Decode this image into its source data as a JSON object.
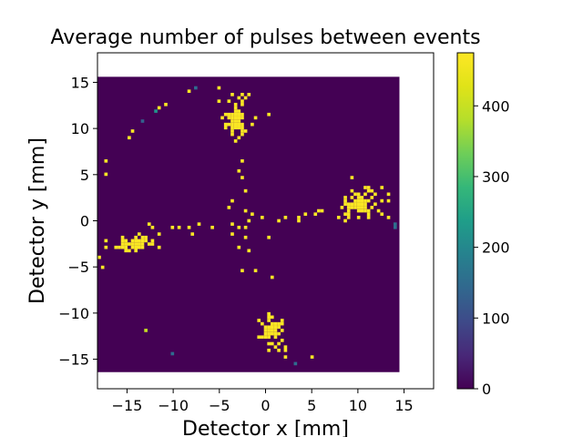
{
  "chart_data": {
    "type": "heatmap",
    "title": "Average number of pulses between events",
    "xlabel": "Detector x [mm]",
    "ylabel": "Detector y [mm]",
    "xlim": [
      -18.2,
      18.2
    ],
    "ylim": [
      -18.2,
      18.2
    ],
    "xticks": [
      -15,
      -10,
      -5,
      0,
      5,
      10,
      15
    ],
    "yticks": [
      -15,
      -10,
      -5,
      0,
      5,
      10,
      15
    ],
    "data_extent": {
      "x": [
        -18.2,
        14.5
      ],
      "y": [
        -16.4,
        15.6
      ]
    },
    "grid": false,
    "colormap": "viridis",
    "colorbar": {
      "min": 0,
      "max": 475,
      "ticks": [
        0,
        100,
        200,
        300,
        400
      ]
    },
    "background_value": 0,
    "clusters": [
      {
        "label": "top",
        "x": -3.2,
        "y": 11.0,
        "sx": 0.9,
        "sy": 1.2,
        "n": 55,
        "value": 470
      },
      {
        "label": "right",
        "x": 10.2,
        "y": 1.8,
        "sx": 1.3,
        "sy": 0.9,
        "n": 60,
        "value": 470
      },
      {
        "label": "left",
        "x": -14.2,
        "y": -2.4,
        "sx": 1.4,
        "sy": 0.5,
        "n": 45,
        "value": 470
      },
      {
        "label": "bottom",
        "x": 0.8,
        "y": -11.8,
        "sx": 0.7,
        "sy": 0.9,
        "n": 40,
        "value": 470
      }
    ],
    "points": [
      {
        "x": -3.5,
        "y": 13.5,
        "value": 470
      },
      {
        "x": -3.0,
        "y": 13.2,
        "value": 470
      },
      {
        "x": -3.2,
        "y": 12.6,
        "value": 470
      },
      {
        "x": -4.3,
        "y": 10.0,
        "value": 470
      },
      {
        "x": -2.0,
        "y": 9.8,
        "value": 470
      },
      {
        "x": 9.3,
        "y": 3.3,
        "value": 470
      },
      {
        "x": 8.8,
        "y": 2.4,
        "value": 470
      },
      {
        "x": 8.6,
        "y": 0.0,
        "value": 470
      },
      {
        "x": 8.2,
        "y": 1.5,
        "value": 470
      },
      {
        "x": 12.5,
        "y": 2.2,
        "value": 470
      },
      {
        "x": 13.2,
        "y": 2.0,
        "value": 470
      },
      {
        "x": 10.0,
        "y": 0.3,
        "value": 470
      },
      {
        "x": 11.0,
        "y": 0.8,
        "value": 470
      },
      {
        "x": 5.3,
        "y": 0.8,
        "value": 470
      },
      {
        "x": 5.6,
        "y": 0.9,
        "value": 470
      },
      {
        "x": 4.2,
        "y": 0.6,
        "value": 470
      },
      {
        "x": 3.6,
        "y": 0.4,
        "value": 470
      },
      {
        "x": 3.5,
        "y": 0.0,
        "value": 470
      },
      {
        "x": 2.3,
        "y": 0.3,
        "value": 470
      },
      {
        "x": 1.5,
        "y": 0.0,
        "value": 470
      },
      {
        "x": 6.0,
        "y": 1.2,
        "value": 470
      },
      {
        "x": -3.0,
        "y": 5.5,
        "value": 470
      },
      {
        "x": -2.5,
        "y": 4.8,
        "value": 470
      },
      {
        "x": -2.6,
        "y": 6.6,
        "value": 470
      },
      {
        "x": -2.2,
        "y": 3.1,
        "value": 470
      },
      {
        "x": -3.5,
        "y": 2.2,
        "value": 470
      },
      {
        "x": -4.1,
        "y": 1.4,
        "value": 470
      },
      {
        "x": -2.0,
        "y": 1.2,
        "value": 470
      },
      {
        "x": -1.5,
        "y": 0.7,
        "value": 470
      },
      {
        "x": -1.9,
        "y": 0.1,
        "value": 470
      },
      {
        "x": -2.2,
        "y": -0.6,
        "value": 470
      },
      {
        "x": -3.0,
        "y": -0.7,
        "value": 470
      },
      {
        "x": -3.6,
        "y": -0.5,
        "value": 470
      },
      {
        "x": -3.5,
        "y": -1.5,
        "value": 470
      },
      {
        "x": -2.1,
        "y": -1.8,
        "value": 470
      },
      {
        "x": -2.8,
        "y": -2.7,
        "value": 470
      },
      {
        "x": -1.8,
        "y": -3.2,
        "value": 470
      },
      {
        "x": -2.5,
        "y": -5.5,
        "value": 470
      },
      {
        "x": -1.0,
        "y": -5.4,
        "value": 470
      },
      {
        "x": 0.6,
        "y": -6.2,
        "value": 470
      },
      {
        "x": 0.2,
        "y": -1.8,
        "value": 470
      },
      {
        "x": -0.4,
        "y": 0.4,
        "value": 470
      },
      {
        "x": -5.6,
        "y": -0.6,
        "value": 470
      },
      {
        "x": -8.4,
        "y": -0.8,
        "value": 470
      },
      {
        "x": -8.0,
        "y": -1.6,
        "value": 470
      },
      {
        "x": -9.2,
        "y": -0.6,
        "value": 470
      },
      {
        "x": -7.3,
        "y": -0.4,
        "value": 470
      },
      {
        "x": -10.0,
        "y": -0.8,
        "value": 470
      },
      {
        "x": -12.3,
        "y": -0.7,
        "value": 470
      },
      {
        "x": -12.5,
        "y": -0.4,
        "value": 470
      },
      {
        "x": -11.5,
        "y": -1.3,
        "value": 470
      },
      {
        "x": -17.6,
        "y": -4.9,
        "value": 470
      },
      {
        "x": -18.0,
        "y": -3.8,
        "value": 470
      },
      {
        "x": -17.2,
        "y": -2.9,
        "value": 470
      },
      {
        "x": -17.4,
        "y": 4.9,
        "value": 470
      },
      {
        "x": -17.1,
        "y": 6.5,
        "value": 470
      },
      {
        "x": -14.8,
        "y": 9.1,
        "value": 470
      },
      {
        "x": -14.3,
        "y": 9.6,
        "value": 470
      },
      {
        "x": -11.5,
        "y": 12.1,
        "value": 470
      },
      {
        "x": -10.8,
        "y": 12.6,
        "value": 470
      },
      {
        "x": -8.2,
        "y": 14.0,
        "value": 470
      },
      {
        "x": 1.1,
        "y": -13.6,
        "value": 470
      },
      {
        "x": 1.6,
        "y": -14.2,
        "value": 470
      },
      {
        "x": 2.2,
        "y": -13.8,
        "value": 470
      },
      {
        "x": 2.1,
        "y": -14.6,
        "value": 470
      },
      {
        "x": 1.4,
        "y": -13.2,
        "value": 470
      },
      {
        "x": 5.1,
        "y": -14.9,
        "value": 470
      },
      {
        "x": 14.2,
        "y": -0.2,
        "value": 155
      },
      {
        "x": 14.2,
        "y": -0.8,
        "value": 155
      },
      {
        "x": -7.5,
        "y": 14.4,
        "value": 150
      },
      {
        "x": -13.5,
        "y": 10.9,
        "value": 130
      },
      {
        "x": -12.0,
        "y": 12.0,
        "value": 220
      },
      {
        "x": -13.0,
        "y": -12.0,
        "value": 400
      },
      {
        "x": -9.9,
        "y": -14.5,
        "value": 150
      },
      {
        "x": 3.4,
        "y": -15.5,
        "value": 150
      }
    ]
  }
}
